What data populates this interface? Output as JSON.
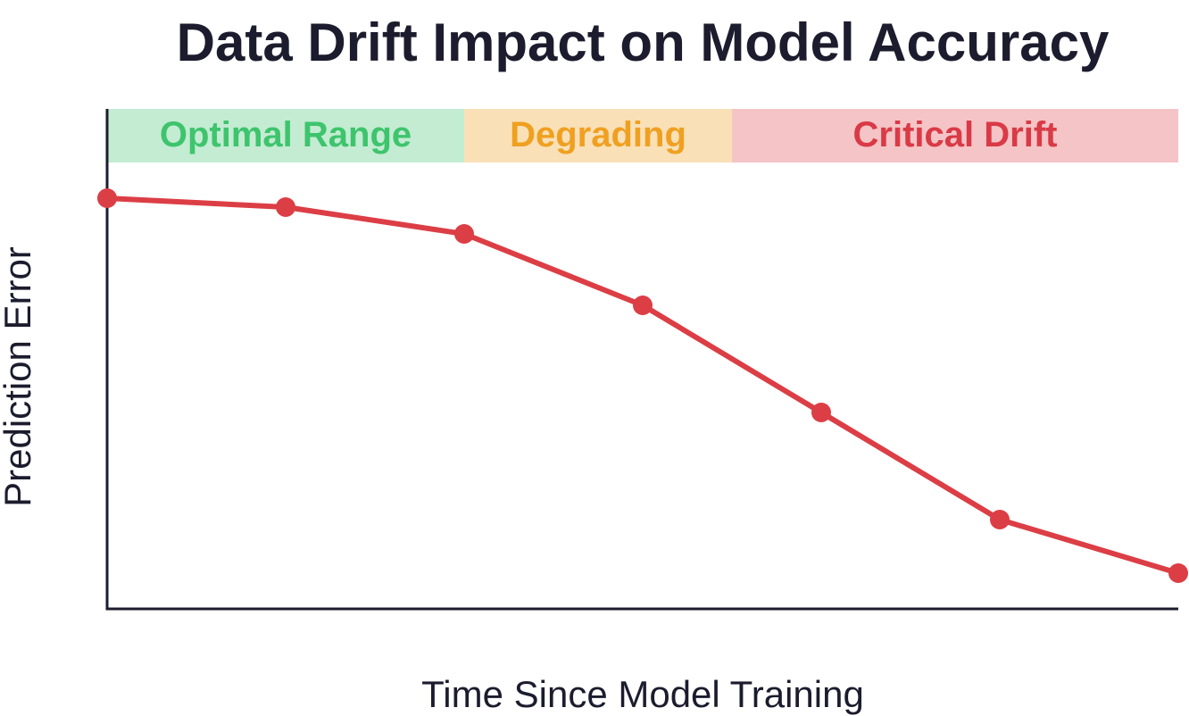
{
  "chart_data": {
    "type": "line",
    "title": "Data Drift Impact on Model Accuracy",
    "xlabel": "Time Since Model Training",
    "ylabel": "Prediction Error",
    "grid": false,
    "series": [
      {
        "color": "#dc3e45",
        "x": [
          0,
          1,
          2,
          3,
          4,
          5,
          6
        ],
        "values": [
          0.92,
          0.9,
          0.84,
          0.68,
          0.44,
          0.2,
          0.08
        ]
      }
    ],
    "xlim": [
      0,
      6
    ],
    "ylim": [
      0,
      1.0
    ],
    "zones": [
      {
        "label": "Optimal Range",
        "start": 0,
        "end": 2,
        "fill": "#c3ecd2",
        "text_color": "#3ec46d"
      },
      {
        "label": "Degrading",
        "start": 2,
        "end": 3.5,
        "fill": "#f9e0b7",
        "text_color": "#f0a020"
      },
      {
        "label": "Critical Drift",
        "start": 3.5,
        "end": 6,
        "fill": "#f4c4c6",
        "text_color": "#d93a46"
      }
    ]
  }
}
